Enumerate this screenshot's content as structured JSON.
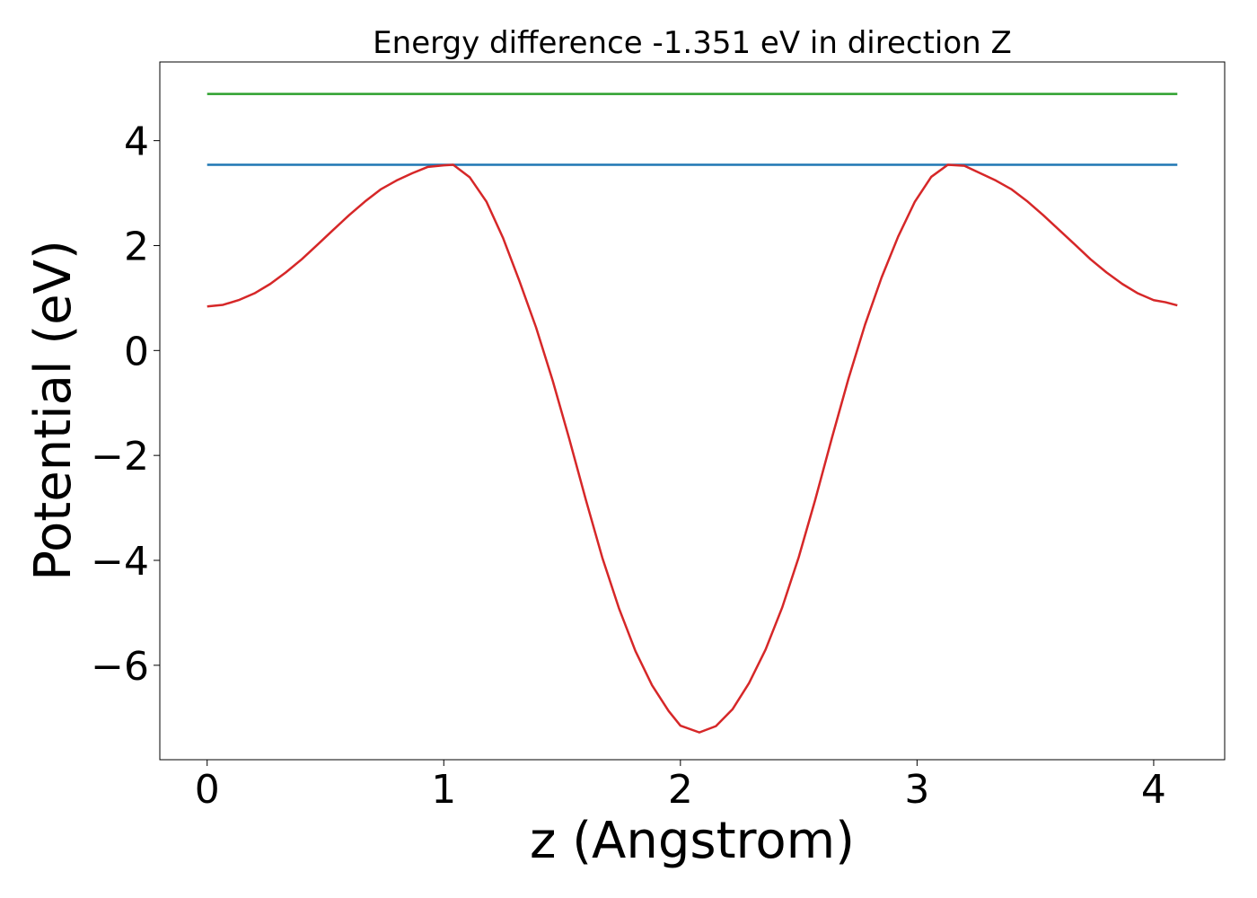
{
  "chart_data": {
    "type": "line",
    "title": "Energy difference -1.351 eV in direction Z",
    "xlabel": "z (Angstrom)",
    "ylabel": "Potential (eV)",
    "xlim": [
      -0.2,
      4.3
    ],
    "ylim": [
      -7.8,
      5.5
    ],
    "x_ticks": [
      0,
      1,
      2,
      3,
      4
    ],
    "y_ticks": [
      -6,
      -4,
      -2,
      0,
      2,
      4
    ],
    "y_tick_labels": [
      "−6",
      "−4",
      "−2",
      "0",
      "2",
      "4"
    ],
    "grid": false,
    "legend": "none",
    "series": [
      {
        "color": "#2ca02c",
        "x": [
          0,
          4.1
        ],
        "y": [
          4.89,
          4.89
        ]
      },
      {
        "color": "#1f77b4",
        "x": [
          0,
          4.1
        ],
        "y": [
          3.54,
          3.54
        ]
      },
      {
        "color": "#d62728",
        "x": [
          0,
          0.067,
          0.133,
          0.2,
          0.267,
          0.333,
          0.4,
          0.467,
          0.533,
          0.6,
          0.667,
          0.733,
          0.8,
          0.867,
          0.933,
          1.0,
          1.04,
          1.11,
          1.18,
          1.25,
          1.32,
          1.39,
          1.46,
          1.53,
          1.6,
          1.67,
          1.74,
          1.81,
          1.88,
          1.95,
          2.0,
          2.08,
          2.15,
          2.22,
          2.29,
          2.36,
          2.43,
          2.5,
          2.57,
          2.64,
          2.71,
          2.78,
          2.85,
          2.92,
          2.99,
          3.06,
          3.13,
          3.2,
          3.267,
          3.333,
          3.4,
          3.467,
          3.533,
          3.6,
          3.667,
          3.733,
          3.8,
          3.867,
          3.933,
          4.0,
          4.05,
          4.1
        ],
        "y": [
          0.84,
          0.87,
          0.96,
          1.09,
          1.27,
          1.49,
          1.74,
          2.02,
          2.3,
          2.58,
          2.84,
          3.07,
          3.24,
          3.38,
          3.5,
          3.53,
          3.54,
          3.3,
          2.84,
          2.15,
          1.32,
          0.44,
          -0.57,
          -1.68,
          -2.84,
          -3.95,
          -4.91,
          -5.73,
          -6.38,
          -6.87,
          -7.15,
          -7.28,
          -7.16,
          -6.84,
          -6.34,
          -5.7,
          -4.9,
          -3.94,
          -2.84,
          -1.67,
          -0.54,
          0.49,
          1.39,
          2.17,
          2.83,
          3.31,
          3.54,
          3.52,
          3.38,
          3.24,
          3.07,
          2.84,
          2.58,
          2.3,
          2.02,
          1.74,
          1.49,
          1.27,
          1.09,
          0.96,
          0.92,
          0.86
        ]
      }
    ]
  }
}
